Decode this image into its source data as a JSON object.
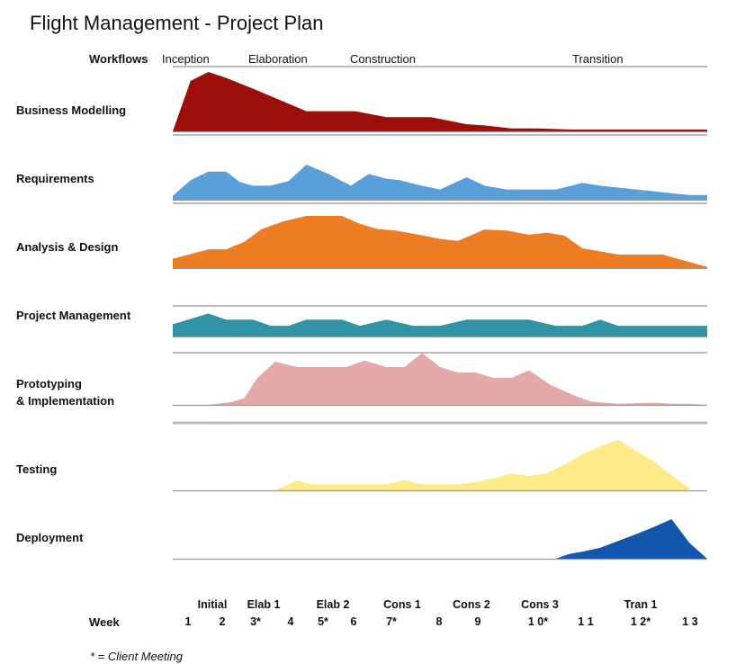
{
  "title": "Flight Management - Project Plan",
  "workflows_label": "Workflows",
  "phases": [
    "Inception",
    "Elaboration",
    "Construction",
    "Transition"
  ],
  "week_label": "Week",
  "footnote": "* = Client Meeting",
  "chart_data": {
    "type": "area",
    "title": "Flight Management - Project Plan",
    "xlabel": "Week",
    "x_range": [
      1,
      13
    ],
    "iterations": [
      "Initial",
      "Elab 1",
      "Elab 2",
      "Cons 1",
      "Cons 2",
      "Cons 3",
      "Tran 1"
    ],
    "weeks": [
      "1",
      "2",
      "3*",
      "4",
      "5*",
      "6",
      "7*",
      "8",
      "9",
      "1 0*",
      "1 1",
      "1 2*",
      "1 3"
    ],
    "series": [
      {
        "name": "Business Modelling",
        "color": "#9b0e0a",
        "x": [
          1,
          1.4,
          1.8,
          2.2,
          2.8,
          4.0,
          5.1,
          5.8,
          6.8,
          7.6,
          8.0,
          8.6,
          9.2,
          10.0,
          11.0,
          12.0,
          13.0
        ],
        "values": [
          0.0,
          0.85,
          1.0,
          0.9,
          0.72,
          0.34,
          0.34,
          0.24,
          0.24,
          0.12,
          0.1,
          0.05,
          0.05,
          0.03,
          0.03,
          0.03,
          0.03
        ]
      },
      {
        "name": "Requirements",
        "color": "#5b9fd9",
        "x": [
          1,
          1.4,
          1.8,
          2.2,
          2.5,
          2.8,
          3.2,
          3.6,
          4.0,
          4.5,
          5.0,
          5.4,
          5.8,
          6.1,
          6.5,
          7.0,
          7.6,
          8.0,
          8.5,
          9.0,
          9.6,
          10.2,
          10.6,
          11.0,
          11.8,
          12.2,
          12.6,
          13.0
        ],
        "values": [
          0.08,
          0.42,
          0.6,
          0.6,
          0.38,
          0.3,
          0.3,
          0.4,
          0.75,
          0.55,
          0.3,
          0.55,
          0.45,
          0.42,
          0.32,
          0.22,
          0.48,
          0.3,
          0.22,
          0.22,
          0.22,
          0.36,
          0.3,
          0.26,
          0.18,
          0.14,
          0.1,
          0.1
        ]
      },
      {
        "name": "Analysis & Design",
        "color": "#ed7d23",
        "x": [
          1,
          1.8,
          2.2,
          2.6,
          3.0,
          3.5,
          4.0,
          4.8,
          5.2,
          5.6,
          6.0,
          6.6,
          7.0,
          7.4,
          8.0,
          8.5,
          9.0,
          9.4,
          9.8,
          10.2,
          11.0,
          11.4,
          12.0,
          13.0
        ],
        "values": [
          0.18,
          0.36,
          0.36,
          0.5,
          0.75,
          0.9,
          1.0,
          1.0,
          0.85,
          0.75,
          0.72,
          0.63,
          0.56,
          0.52,
          0.74,
          0.72,
          0.64,
          0.68,
          0.62,
          0.38,
          0.26,
          0.26,
          0.26,
          0.02
        ]
      },
      {
        "name": "Project Management",
        "color": "#3194a6",
        "x": [
          1,
          1.8,
          2.2,
          2.8,
          3.2,
          3.6,
          4.0,
          4.8,
          5.2,
          5.8,
          6.4,
          7.0,
          7.6,
          8.2,
          8.6,
          9.0,
          9.6,
          10.2,
          10.6,
          11.0,
          11.8,
          12.2,
          12.6,
          13.0
        ],
        "values": [
          0.4,
          0.75,
          0.55,
          0.55,
          0.35,
          0.35,
          0.55,
          0.55,
          0.35,
          0.55,
          0.35,
          0.35,
          0.55,
          0.55,
          0.55,
          0.55,
          0.35,
          0.35,
          0.55,
          0.35,
          0.35,
          0.35,
          0.35,
          0.35
        ]
      },
      {
        "name": "Prototyping & Implementation",
        "color": "#e5a8a8",
        "x": [
          1,
          1.8,
          2.3,
          2.6,
          2.9,
          3.3,
          3.8,
          4.0,
          4.3,
          4.9,
          5.3,
          5.8,
          6.2,
          6.6,
          7.0,
          7.4,
          7.8,
          8.2,
          8.6,
          9.0,
          9.5,
          10.0,
          10.4,
          11.0,
          11.8,
          12.2,
          12.6,
          13.0
        ],
        "values": [
          0.0,
          0.0,
          0.05,
          0.12,
          0.5,
          0.8,
          0.7,
          0.7,
          0.7,
          0.7,
          0.82,
          0.7,
          0.7,
          0.96,
          0.7,
          0.6,
          0.6,
          0.5,
          0.5,
          0.64,
          0.36,
          0.18,
          0.06,
          0.02,
          0.04,
          0.02,
          0.02,
          0.0
        ]
      },
      {
        "name": "Testing",
        "color": "#fdeb8a",
        "x": [
          3.3,
          3.8,
          4.1,
          4.5,
          5.0,
          5.4,
          5.8,
          6.2,
          6.6,
          7.0,
          7.4,
          7.8,
          8.2,
          8.6,
          9.0,
          9.4,
          9.8,
          10.2,
          10.6,
          11.0,
          11.4,
          11.8,
          12.2,
          12.6
        ],
        "values": [
          0.0,
          0.2,
          0.12,
          0.12,
          0.12,
          0.12,
          0.12,
          0.2,
          0.12,
          0.12,
          0.12,
          0.16,
          0.24,
          0.34,
          0.28,
          0.34,
          0.52,
          0.72,
          0.88,
          1.0,
          0.78,
          0.58,
          0.3,
          0.05
        ]
      },
      {
        "name": "Deployment",
        "color": "#1456ab",
        "x": [
          9.6,
          9.9,
          10.2,
          10.6,
          11.0,
          11.4,
          11.8,
          12.2,
          12.6,
          13.0
        ],
        "values": [
          0.0,
          0.12,
          0.18,
          0.28,
          0.45,
          0.62,
          0.8,
          1.0,
          0.4,
          0.0
        ]
      }
    ]
  }
}
